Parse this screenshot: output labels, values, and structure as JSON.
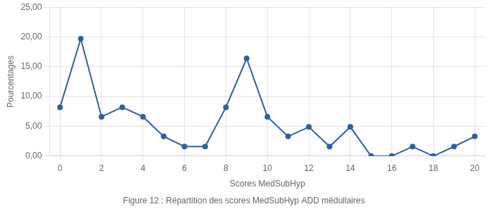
{
  "chart_data": {
    "type": "line",
    "caption": "Figure 12 : Répartition des scores MedSubHyp ADD médullaires",
    "xlabel": "Scores MedSubHyp",
    "ylabel": "Pourcentages",
    "x": [
      0,
      1,
      2,
      3,
      4,
      5,
      6,
      7,
      8,
      9,
      10,
      11,
      12,
      13,
      14,
      15,
      16,
      17,
      18,
      19,
      20
    ],
    "values": [
      8.2,
      19.7,
      6.6,
      8.2,
      6.6,
      3.3,
      1.6,
      1.6,
      8.2,
      16.4,
      6.6,
      3.3,
      4.9,
      1.6,
      4.9,
      0.0,
      0.0,
      1.6,
      0.0,
      1.6,
      3.3
    ],
    "color": "#2E5FA3",
    "marker": "circle",
    "line_style": "solid",
    "xlim": [
      -0.5,
      20.5
    ],
    "ylim": [
      0.0,
      25.0
    ],
    "xticks": [
      0,
      2,
      4,
      6,
      8,
      10,
      12,
      14,
      16,
      18,
      20
    ],
    "yticks": [
      {
        "value": 0.0,
        "label": "0,00"
      },
      {
        "value": 5.0,
        "label": "5,00"
      },
      {
        "value": 10.0,
        "label": "10,00"
      },
      {
        "value": 15.0,
        "label": "15,00"
      },
      {
        "value": 20.0,
        "label": "20,00"
      },
      {
        "value": 25.0,
        "label": "25,00"
      }
    ],
    "grid": true
  }
}
